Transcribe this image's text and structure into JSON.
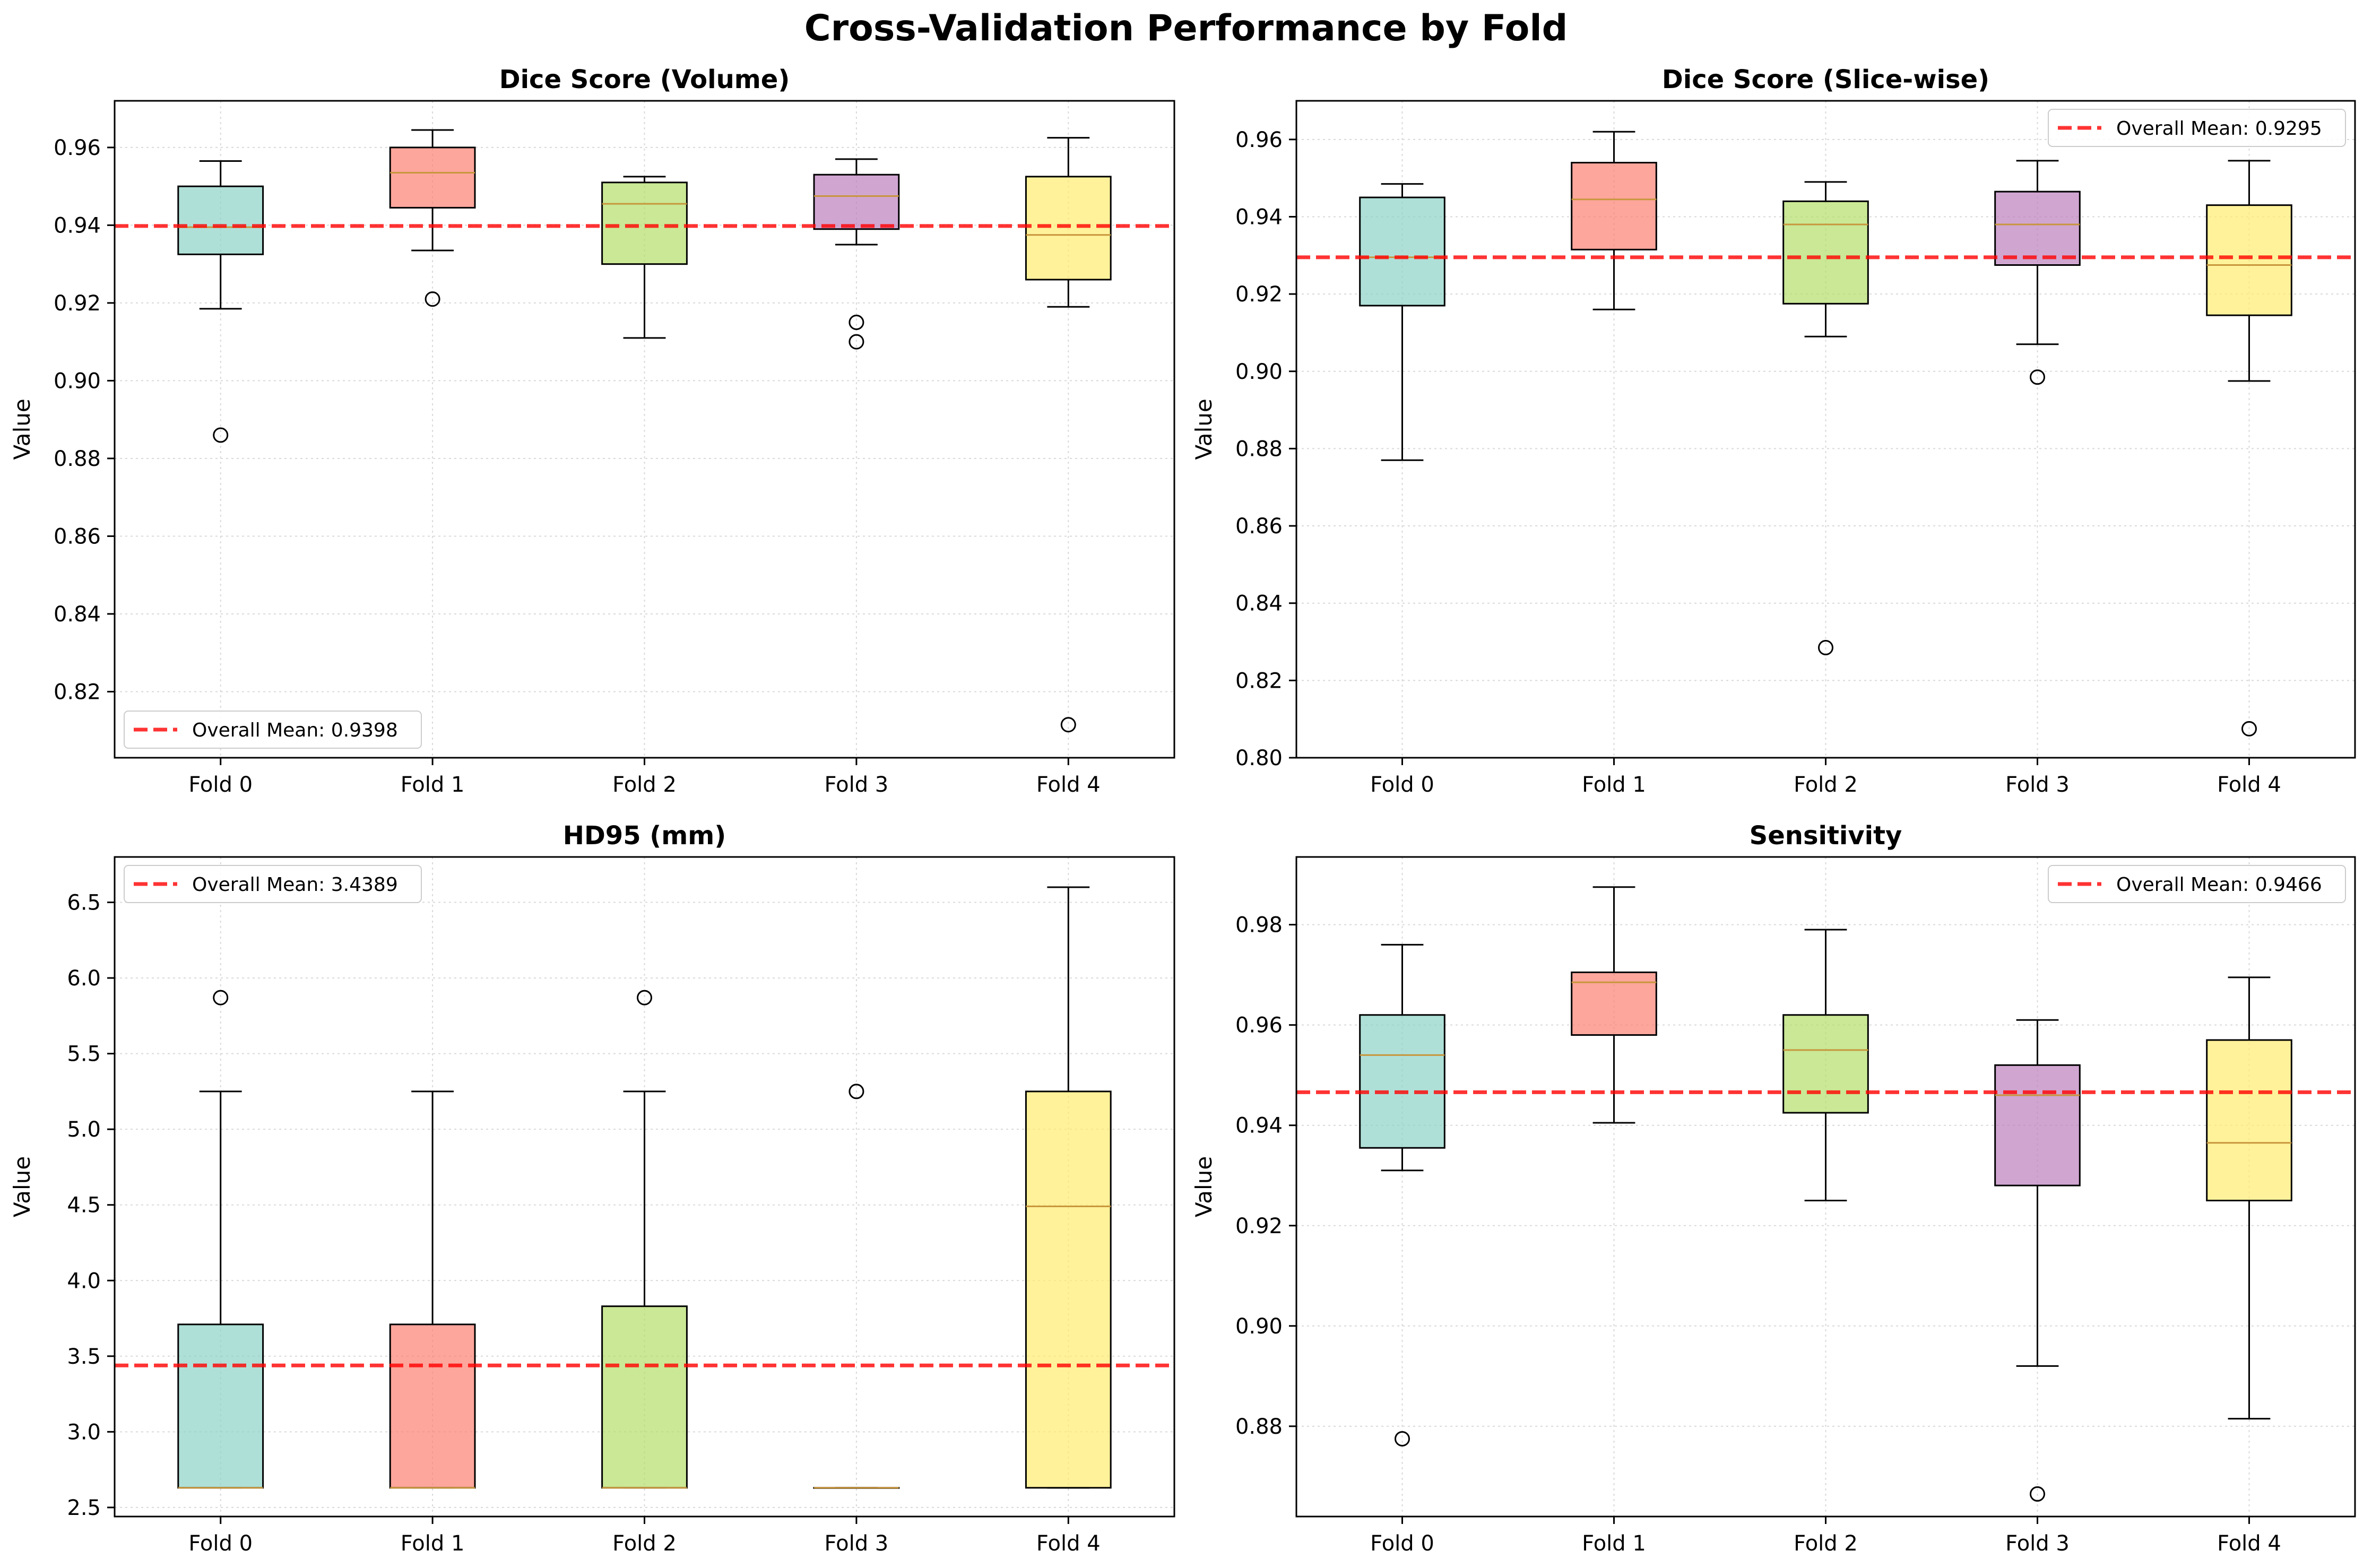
{
  "suptitle": "Cross-Validation Performance by Fold",
  "colors": {
    "fold_fills": [
      "#8dd3c7",
      "#fb8072",
      "#b3de69",
      "#bc80bd",
      "#ffed6f"
    ],
    "median_line": "#c8963c",
    "mean_line": "#ff0000",
    "box_edge": "#000000",
    "grid": "#d9d9d9"
  },
  "chart_data": [
    {
      "type": "box",
      "title": "Dice Score (Volume)",
      "ylabel": "Value",
      "ylim": [
        0.803,
        0.972
      ],
      "yticks": [
        0.82,
        0.84,
        0.86,
        0.88,
        0.9,
        0.92,
        0.94,
        0.96
      ],
      "ytick_labels": [
        "0.82",
        "0.84",
        "0.86",
        "0.88",
        "0.90",
        "0.92",
        "0.94",
        "0.96"
      ],
      "grid": true,
      "legend_position": "lower-left",
      "mean": 0.9398,
      "mean_label": "Overall Mean: 0.9398",
      "categories": [
        "Fold 0",
        "Fold 1",
        "Fold 2",
        "Fold 3",
        "Fold 4"
      ],
      "boxes": [
        {
          "whisker_low": 0.9185,
          "q1": 0.9325,
          "median": 0.9395,
          "q3": 0.95,
          "whisker_high": 0.9565,
          "outliers": [
            0.886
          ]
        },
        {
          "whisker_low": 0.9335,
          "q1": 0.9445,
          "median": 0.9535,
          "q3": 0.96,
          "whisker_high": 0.9645,
          "outliers": [
            0.921
          ]
        },
        {
          "whisker_low": 0.911,
          "q1": 0.93,
          "median": 0.9455,
          "q3": 0.951,
          "whisker_high": 0.9525,
          "outliers": []
        },
        {
          "whisker_low": 0.935,
          "q1": 0.939,
          "median": 0.9475,
          "q3": 0.953,
          "whisker_high": 0.957,
          "outliers": [
            0.915,
            0.91
          ]
        },
        {
          "whisker_low": 0.919,
          "q1": 0.926,
          "median": 0.9375,
          "q3": 0.9525,
          "whisker_high": 0.9625,
          "outliers": [
            0.8115
          ]
        }
      ]
    },
    {
      "type": "box",
      "title": "Dice Score (Slice-wise)",
      "ylabel": "Value",
      "ylim": [
        0.8,
        0.97
      ],
      "yticks": [
        0.8,
        0.82,
        0.84,
        0.86,
        0.88,
        0.9,
        0.92,
        0.94,
        0.96
      ],
      "ytick_labels": [
        "0.80",
        "0.82",
        "0.84",
        "0.86",
        "0.88",
        "0.90",
        "0.92",
        "0.94",
        "0.96"
      ],
      "grid": true,
      "legend_position": "upper-right",
      "mean": 0.9295,
      "mean_label": "Overall Mean: 0.9295",
      "categories": [
        "Fold 0",
        "Fold 1",
        "Fold 2",
        "Fold 3",
        "Fold 4"
      ],
      "boxes": [
        {
          "whisker_low": 0.877,
          "q1": 0.917,
          "median": 0.9295,
          "q3": 0.945,
          "whisker_high": 0.9485,
          "outliers": []
        },
        {
          "whisker_low": 0.916,
          "q1": 0.9315,
          "median": 0.9445,
          "q3": 0.954,
          "whisker_high": 0.962,
          "outliers": []
        },
        {
          "whisker_low": 0.909,
          "q1": 0.9175,
          "median": 0.938,
          "q3": 0.944,
          "whisker_high": 0.949,
          "outliers": [
            0.8285
          ]
        },
        {
          "whisker_low": 0.907,
          "q1": 0.9275,
          "median": 0.938,
          "q3": 0.9465,
          "whisker_high": 0.9545,
          "outliers": [
            0.8985
          ]
        },
        {
          "whisker_low": 0.8975,
          "q1": 0.9145,
          "median": 0.9275,
          "q3": 0.943,
          "whisker_high": 0.9545,
          "outliers": [
            0.8075
          ]
        }
      ]
    },
    {
      "type": "box",
      "title": "HD95 (mm)",
      "ylabel": "Value",
      "ylim": [
        2.44,
        6.8
      ],
      "yticks": [
        2.5,
        3.0,
        3.5,
        4.0,
        4.5,
        5.0,
        5.5,
        6.0,
        6.5
      ],
      "ytick_labels": [
        "2.5",
        "3.0",
        "3.5",
        "4.0",
        "4.5",
        "5.0",
        "5.5",
        "6.0",
        "6.5"
      ],
      "grid": true,
      "legend_position": "upper-left",
      "mean": 3.4389,
      "mean_label": "Overall Mean: 3.4389",
      "categories": [
        "Fold 0",
        "Fold 1",
        "Fold 2",
        "Fold 3",
        "Fold 4"
      ],
      "boxes": [
        {
          "whisker_low": 2.63,
          "q1": 2.63,
          "median": 2.63,
          "q3": 3.71,
          "whisker_high": 5.25,
          "outliers": [
            5.87
          ]
        },
        {
          "whisker_low": 2.63,
          "q1": 2.63,
          "median": 2.63,
          "q3": 3.71,
          "whisker_high": 5.25,
          "outliers": []
        },
        {
          "whisker_low": 2.63,
          "q1": 2.63,
          "median": 2.63,
          "q3": 3.83,
          "whisker_high": 5.25,
          "outliers": [
            5.87
          ]
        },
        {
          "whisker_low": 2.63,
          "q1": 2.63,
          "median": 2.63,
          "q3": 2.63,
          "whisker_high": 2.63,
          "outliers": [
            5.25
          ]
        },
        {
          "whisker_low": 2.63,
          "q1": 2.63,
          "median": 4.49,
          "q3": 5.25,
          "whisker_high": 6.6,
          "outliers": []
        }
      ]
    },
    {
      "type": "box",
      "title": "Sensitivity",
      "ylabel": "Value",
      "ylim": [
        0.862,
        0.9935
      ],
      "yticks": [
        0.88,
        0.9,
        0.92,
        0.94,
        0.96,
        0.98
      ],
      "ytick_labels": [
        "0.88",
        "0.90",
        "0.92",
        "0.94",
        "0.96",
        "0.98"
      ],
      "grid": true,
      "legend_position": "upper-right",
      "mean": 0.9466,
      "mean_label": "Overall Mean: 0.9466",
      "categories": [
        "Fold 0",
        "Fold 1",
        "Fold 2",
        "Fold 3",
        "Fold 4"
      ],
      "boxes": [
        {
          "whisker_low": 0.931,
          "q1": 0.9355,
          "median": 0.954,
          "q3": 0.962,
          "whisker_high": 0.976,
          "outliers": [
            0.8775
          ]
        },
        {
          "whisker_low": 0.9405,
          "q1": 0.958,
          "median": 0.9685,
          "q3": 0.9705,
          "whisker_high": 0.9875,
          "outliers": []
        },
        {
          "whisker_low": 0.925,
          "q1": 0.9425,
          "median": 0.955,
          "q3": 0.962,
          "whisker_high": 0.979,
          "outliers": []
        },
        {
          "whisker_low": 0.892,
          "q1": 0.928,
          "median": 0.946,
          "q3": 0.952,
          "whisker_high": 0.961,
          "outliers": [
            0.8665
          ]
        },
        {
          "whisker_low": 0.8815,
          "q1": 0.925,
          "median": 0.9365,
          "q3": 0.957,
          "whisker_high": 0.9695,
          "outliers": []
        }
      ]
    }
  ]
}
